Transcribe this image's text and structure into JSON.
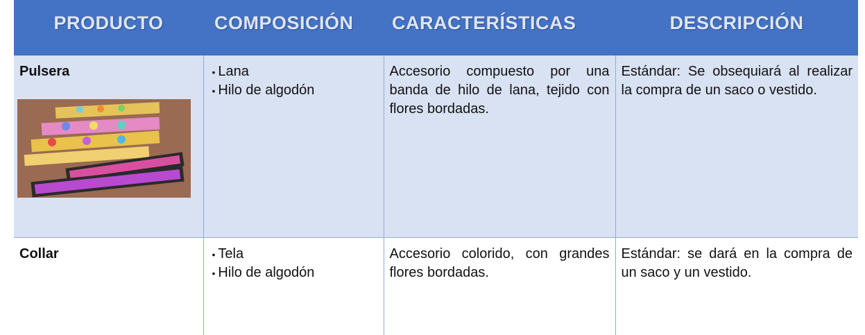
{
  "header": {
    "columns": [
      "PRODUCTO",
      "COMPOSICIÓN",
      "CARACTERÍSTICAS",
      "DESCRIPCIÓN"
    ]
  },
  "table": {
    "rows": [
      {
        "product": "Pulsera",
        "composition": [
          "Lana",
          "Hilo de algodón"
        ],
        "characteristics": "Accesorio compuesto por una banda de hilo de lana, tejido con flores bordadas.",
        "description": "Estándar: Se obsequiará al realizar la compra de un saco o vestido."
      },
      {
        "product": "Collar",
        "composition": [
          "Tela",
          "Hilo de algodón"
        ],
        "characteristics": "Accesorio colorido, con grandes flores bordadas.",
        "description": "Estándar: se dará en la compra de un saco y un vestido."
      }
    ]
  }
}
